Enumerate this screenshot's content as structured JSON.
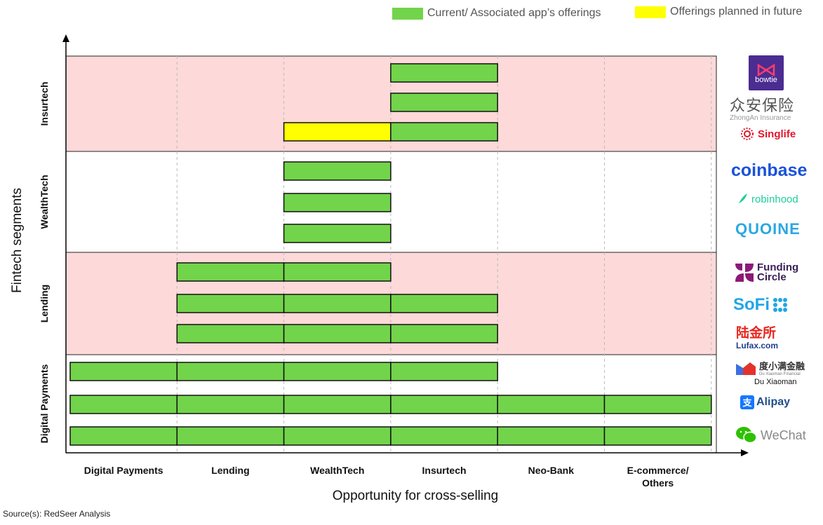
{
  "legend": {
    "current_label": "Current/ Associated app’s offerings",
    "future_label": "Offerings planned in future",
    "current_color": "#72d44a",
    "future_color": "#ffff00"
  },
  "chart_data": {
    "type": "bar",
    "xlabel": "Opportunity for cross-selling",
    "ylabel": "Fintech segments",
    "x_categories": [
      "Digital Payments",
      "Lending",
      "WealthTech",
      "Insurtech",
      "Neo-Bank",
      "E-commerce/ Others"
    ],
    "segments": [
      {
        "name": "Insurtech",
        "shaded": true,
        "apps": [
          {
            "name": "bowtie",
            "current": [
              "Insurtech"
            ],
            "planned": []
          },
          {
            "name": "ZhongAn Insurance",
            "current": [
              "Insurtech"
            ],
            "planned": []
          },
          {
            "name": "Singlife",
            "current": [
              "Insurtech"
            ],
            "planned": [
              "WealthTech"
            ]
          }
        ]
      },
      {
        "name": "WealthTech",
        "shaded": false,
        "apps": [
          {
            "name": "coinbase",
            "current": [
              "WealthTech"
            ],
            "planned": []
          },
          {
            "name": "robinhood",
            "current": [
              "WealthTech"
            ],
            "planned": []
          },
          {
            "name": "QUOINE",
            "current": [
              "WealthTech"
            ],
            "planned": []
          }
        ]
      },
      {
        "name": "Lending",
        "shaded": true,
        "apps": [
          {
            "name": "Funding Circle",
            "current": [
              "Lending",
              "WealthTech"
            ],
            "planned": []
          },
          {
            "name": "SoFi",
            "current": [
              "Lending",
              "WealthTech",
              "Insurtech"
            ],
            "planned": []
          },
          {
            "name": "Lufax",
            "current": [
              "Lending",
              "WealthTech",
              "Insurtech"
            ],
            "planned": []
          }
        ]
      },
      {
        "name": "Digital Payments",
        "shaded": false,
        "apps": [
          {
            "name": "Du Xiaoman",
            "current": [
              "Digital Payments",
              "Lending",
              "WealthTech",
              "Insurtech"
            ],
            "planned": []
          },
          {
            "name": "Alipay",
            "current": [
              "Digital Payments",
              "Lending",
              "WealthTech",
              "Insurtech",
              "Neo-Bank",
              "E-commerce/ Others"
            ],
            "planned": []
          },
          {
            "name": "WeChat",
            "current": [
              "Digital Payments",
              "Lending",
              "WealthTech",
              "Insurtech",
              "Neo-Bank",
              "E-commerce/ Others"
            ],
            "planned": []
          }
        ]
      }
    ]
  },
  "logos": {
    "bowtie": "bowtie",
    "zhongan_cn": "众安保险",
    "zhongan_en": "ZhongAn Insurance",
    "singlife": "Singlife",
    "coinbase": "coinbase",
    "robinhood": "robinhood",
    "quoine": "QUOINE",
    "funding_circle": "Funding Circle",
    "sofi": "SoFi",
    "lufax_cn": "陆金所",
    "lufax_en": "Lufax.com",
    "duxiaoman_cn": "度小满金融",
    "duxiaoman_en": "Du Xiaoman Financial",
    "duxiaoman_caption": "Du Xiaoman",
    "alipay": "Alipay",
    "wechat": "WeChat"
  },
  "source": "Source(s): RedSeer Analysis"
}
